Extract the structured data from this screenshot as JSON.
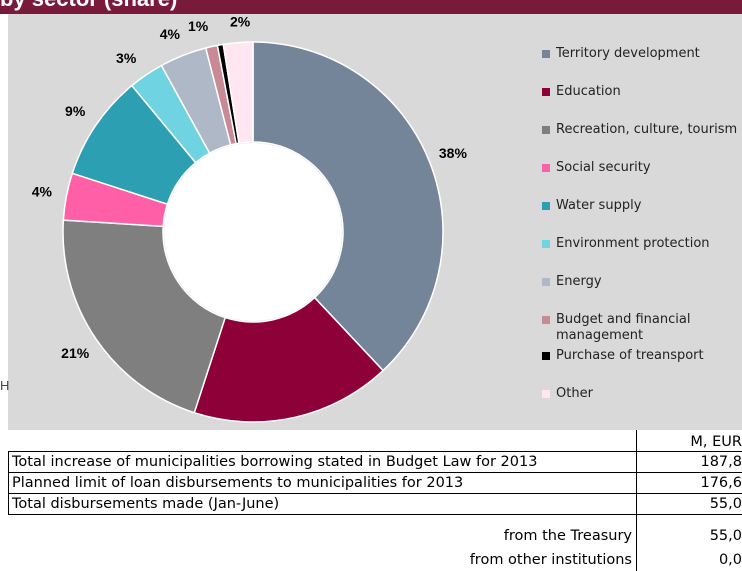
{
  "header": {
    "title_fragment": "by sector (share)"
  },
  "side_mark": "H",
  "chart_data": {
    "type": "pie",
    "donut": true,
    "title": "",
    "slices": [
      {
        "label": "Territory development",
        "value": 38,
        "pct_label": "38%",
        "color": "#748499"
      },
      {
        "label": "Education",
        "value": 17,
        "pct_label": "17%",
        "color": "#8e0038"
      },
      {
        "label": "Recreation, culture, tourism",
        "value": 21,
        "pct_label": "21%",
        "color": "#7f7f7f"
      },
      {
        "label": "Social security",
        "value": 4,
        "pct_label": "4%",
        "color": "#ff5fa6"
      },
      {
        "label": "Water supply",
        "value": 9,
        "pct_label": "9%",
        "color": "#2c9fb3"
      },
      {
        "label": "Environment protection",
        "value": 3,
        "pct_label": "3%",
        "color": "#6fd3e2"
      },
      {
        "label": "Energy",
        "value": 4,
        "pct_label": "4%",
        "color": "#aeb8c7"
      },
      {
        "label": "Budget and financial management",
        "value": 1,
        "pct_label": "1%",
        "color": "#c88a95"
      },
      {
        "label": "Purchase of treansport",
        "value": 0.5,
        "pct_label": "1%",
        "color": "#000000"
      },
      {
        "label": "Other",
        "value": 2.5,
        "pct_label": "2%",
        "color": "#ffe6f0"
      }
    ],
    "legend_position": "right"
  },
  "table": {
    "unit_header": "M, EUR",
    "rows": [
      {
        "label": "Total increase of municipalities borrowing stated in Budget Law for 2013",
        "value": "187,8"
      },
      {
        "label": "Planned limit of loan disbursements to municipalities for 2013",
        "value": "176,6"
      },
      {
        "label": "Total disbursements made (Jan-June)",
        "value": "55,0"
      },
      {
        "label": "from the Treasury",
        "value": "55,0"
      },
      {
        "label": "from other institutions",
        "value": "0,0"
      }
    ]
  }
}
